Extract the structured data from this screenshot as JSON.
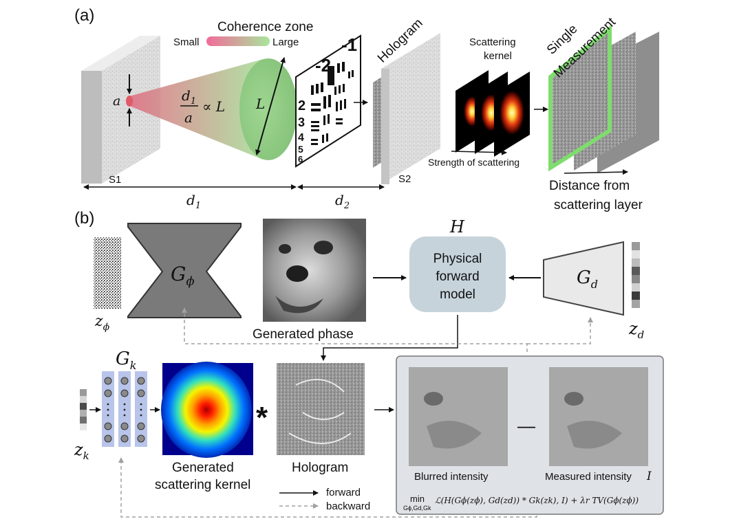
{
  "panel_a": {
    "label": "(a)",
    "coherence_zone": "Coherence zone",
    "small": "Small",
    "large": "Large",
    "aperture": "a",
    "ratio_num": "d",
    "ratio_num_sub": "1",
    "ratio_den": "a",
    "ratio_prop": "∝ L",
    "beam_size": "L",
    "s1": "S1",
    "s2": "S2",
    "d1": "d",
    "d1_sub": "1",
    "d2": "d",
    "d2_sub": "2",
    "hologram": "Hologram",
    "scattering_kernel_1": "Scattering",
    "scattering_kernel_2": "kernel",
    "strength": "Strength of scattering",
    "single_measurement_1": "Single",
    "single_measurement_2": "Measurement",
    "distance_1": "Distance from",
    "distance_2": "scattering layer",
    "usaf_numbers": [
      "-2",
      "-1",
      "2",
      "3",
      "4",
      "5",
      "6"
    ]
  },
  "panel_b": {
    "label": "(b)",
    "G_phi": "G",
    "G_phi_sub": "ϕ",
    "z_phi": "z",
    "z_phi_sub": "ϕ",
    "generated_phase": "Generated phase",
    "H": "H",
    "physical_model": [
      "Physical",
      "forward",
      "model"
    ],
    "G_d": "G",
    "G_d_sub": "d",
    "z_d": "z",
    "z_d_sub": "d",
    "G_k": "G",
    "G_k_sub": "k",
    "z_k": "z",
    "z_k_sub": "k",
    "generated_kernel_1": "Generated",
    "generated_kernel_2": "scattering kernel",
    "convolution": "*",
    "hologram": "Hologram",
    "blurred": "Blurred intensity",
    "minus": "—",
    "measured": "Measured intensity",
    "measured_symbol": "I",
    "legend_forward": "forward",
    "legend_backward": "backward",
    "loss_min": "min",
    "loss_min_sub": "Gϕ,Gd,Gk",
    "loss_expr": "ℒ(H(Gϕ(zϕ), Gd(zd)) * Gk(zk), I) + λr TV(Gϕ(zϕ))"
  },
  "colors": {
    "generator": "#7a7a7a",
    "physical_model": "#c6d3db",
    "network_column": "#b8c4ea",
    "loss_box": "#dfe2e6",
    "beam_start": "#e46b7e",
    "beam_end": "#a6dd96",
    "measurement_border": "#7fdc6e"
  }
}
